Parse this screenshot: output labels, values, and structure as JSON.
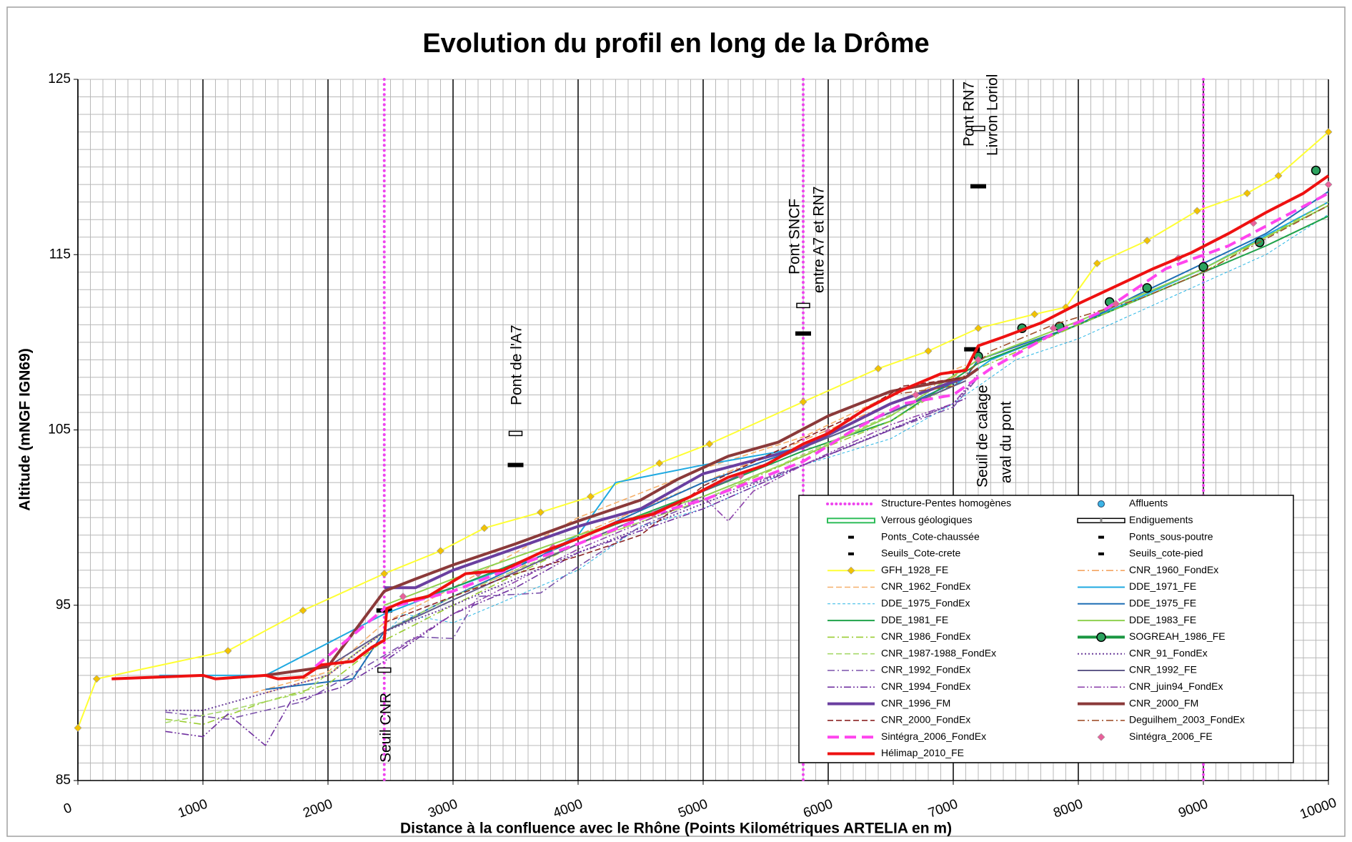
{
  "chart_data": {
    "type": "line",
    "title": "Evolution du profil en long de la Drôme",
    "x_label": "Distance à la confluence avec le Rhône (Points Kilométriques ARTELIA en m)",
    "y_label": "Altitude (mNGF IGN69)",
    "xlim": [
      0,
      10000
    ],
    "xticks": [
      0,
      1000,
      2000,
      3000,
      4000,
      5000,
      6000,
      7000,
      8000,
      9000,
      10000
    ],
    "ylim": [
      85,
      125
    ],
    "yticks": [
      85,
      95,
      105,
      115,
      125
    ],
    "grid": true,
    "annotations": [
      [
        "Seuil CNR"
      ],
      [
        "Pont de l'A7"
      ],
      [
        "Pont SNCF",
        "entre A7 et RN7"
      ],
      [
        "Pont RN7",
        "Livron Loriol"
      ],
      [
        "Seuil de calage",
        "aval du pont"
      ]
    ],
    "series": [
      {
        "name": "Structure-Pentes homogènes",
        "color": "#ee44ee",
        "style": "vline",
        "x": [
          2450,
          5800,
          9000
        ]
      },
      {
        "name": "Affluents",
        "color": "#3cb4e6",
        "style": "none",
        "marker": "circle"
      },
      {
        "name": "Verrous géologiques",
        "color": "#2ebd59",
        "style": "outlined"
      },
      {
        "name": "Endiguements",
        "color": "#000000",
        "style": "double"
      },
      {
        "name": "Ponts_Cote-chaussée",
        "color": "#000000",
        "style": "none",
        "marker": "hollow-bar",
        "x": [
          2450,
          3500,
          5800,
          7200
        ],
        "values": [
          91.3,
          104.8,
          112.1,
          122.2
        ]
      },
      {
        "name": "Ponts_sous-poutre",
        "color": "#000000",
        "style": "none",
        "marker": "bar",
        "x": [
          3500,
          5800,
          7200
        ],
        "values": [
          103,
          110.5,
          118.9
        ]
      },
      {
        "name": "Seuils_Cote-crete",
        "color": "#000000",
        "style": "none",
        "marker": "bar",
        "x": [
          2450,
          7150
        ],
        "values": [
          94.7,
          109.6
        ]
      },
      {
        "name": "Seuils_cote-pied",
        "color": "#000000",
        "style": "none",
        "marker": "bar"
      },
      {
        "name": "GFH_1928_FE",
        "color": "#ffff33",
        "style": "solid",
        "marker": "diamond",
        "marker_color": "#f2c200",
        "x": [
          0,
          150,
          1200,
          1800,
          2450,
          2900,
          3250,
          3700,
          4100,
          4650,
          5050,
          5800,
          6400,
          6800,
          7200,
          7650,
          7900,
          8150,
          8550,
          8950,
          9350,
          9600,
          10000
        ],
        "values": [
          88,
          90.8,
          92.4,
          94.7,
          96.8,
          98.1,
          99.4,
          100.3,
          101.2,
          103.1,
          104.2,
          106.6,
          108.5,
          109.5,
          110.8,
          111.6,
          112,
          114.5,
          115.8,
          117.5,
          118.5,
          119.5,
          122
        ]
      },
      {
        "name": "CNR_1960_FondEx",
        "color": "#f4a460",
        "style": "dashdot",
        "x": [
          1500,
          2000,
          2450,
          3000,
          3500,
          4000,
          5000,
          5800,
          6500,
          7000,
          7200
        ],
        "values": [
          90,
          91,
          93.5,
          95.5,
          97,
          99,
          102,
          104.4,
          106.5,
          108,
          109
        ]
      },
      {
        "name": "CNR_1962_FondEx",
        "color": "#f5b06a",
        "style": "dashed",
        "x": [
          1400,
          2000,
          2450,
          3000,
          4000,
          5000,
          5800,
          6500,
          7100
        ],
        "values": [
          90,
          91.2,
          94,
          96,
          100,
          102.8,
          104.6,
          107,
          108.7
        ]
      },
      {
        "name": "DDE_1971_FE",
        "color": "#1fa9e1",
        "style": "solid",
        "x": [
          650,
          1500,
          2450,
          3000,
          3700,
          4000,
          4300,
          5000,
          5800,
          6500,
          7000,
          7300,
          8000,
          9000,
          10000
        ],
        "values": [
          91,
          91,
          94.5,
          96,
          97.8,
          99,
          102,
          103,
          104,
          106,
          107.5,
          109,
          111,
          114.2,
          118
        ]
      },
      {
        "name": "DDE_1975_FondEx",
        "color": "#29b6e6",
        "style": "thin-dashed",
        "x": [
          2300,
          2600,
          3000,
          3500,
          4000,
          4500,
          5000,
          5800,
          6500,
          7000,
          7500,
          8000,
          8500,
          9000,
          9500,
          10000
        ],
        "values": [
          92,
          94.5,
          94,
          95.5,
          97,
          99.5,
          100.5,
          103,
          104.5,
          106.5,
          109,
          110.2,
          111.8,
          113.4,
          115,
          117.3
        ]
      },
      {
        "name": "DDE_1975_FE",
        "color": "#1f6fb5",
        "style": "solid",
        "x": [
          1500,
          2200,
          2450,
          3000,
          4000,
          5000,
          5800,
          6500,
          7100,
          7200,
          8000,
          8500,
          9000,
          9500,
          10000
        ],
        "values": [
          90.2,
          90.8,
          93.5,
          95.5,
          98.8,
          102,
          104,
          106,
          108,
          109,
          111,
          112.8,
          114.5,
          116.2,
          118.6
        ]
      },
      {
        "name": "DDE_1981_FE",
        "color": "#1fa24a",
        "style": "solid",
        "x": [
          2450,
          3000,
          4000,
          5000,
          5800,
          6500,
          7200,
          8000,
          9000,
          9500,
          10000
        ],
        "values": [
          94.8,
          96,
          98.8,
          101.5,
          103.8,
          105.5,
          108.8,
          111,
          114,
          115.5,
          117.2
        ]
      },
      {
        "name": "DDE_1983_FE",
        "color": "#8fd14f",
        "style": "solid",
        "x": [
          2450,
          3000,
          4000,
          5000,
          5800,
          6500,
          7200,
          8000,
          9000,
          10000
        ],
        "values": [
          95,
          96.5,
          99,
          101.2,
          103.5,
          105.8,
          109,
          111.2,
          114.2,
          117.8
        ]
      },
      {
        "name": "CNR_1986_FondEx",
        "color": "#9acd32",
        "style": "dashdot",
        "x": [
          700,
          1000,
          1500,
          2000,
          2450,
          3000,
          4000,
          5000,
          5800,
          6500,
          7200,
          8000,
          9000,
          10000
        ],
        "values": [
          88.5,
          88.2,
          89.5,
          90.5,
          93,
          95,
          98.5,
          101,
          103.5,
          105.5,
          108.5,
          111,
          114,
          118
        ]
      },
      {
        "name": "SOGREAH_1986_FE",
        "color": "#1a9641",
        "style": "none",
        "marker": "ring",
        "marker_color": "#2ca25f",
        "x": [
          7200,
          7550,
          7850,
          8250,
          8550,
          9000,
          9450,
          9900
        ],
        "values": [
          109.2,
          110.8,
          110.9,
          112.3,
          113.1,
          114.3,
          115.7,
          119.8
        ]
      },
      {
        "name": "CNR_1987-1988_FondEx",
        "color": "#a6d96a",
        "style": "dashed",
        "x": [
          700,
          1200,
          1800,
          2450,
          3000,
          4000,
          5000,
          5800,
          7000
        ],
        "values": [
          88.3,
          89,
          90,
          93.5,
          95.5,
          98.5,
          101,
          103.6,
          107.5
        ]
      },
      {
        "name": "CNR_91_FondEx",
        "color": "#6a3d9a",
        "style": "dotted",
        "x": [
          700,
          1000,
          1500,
          2000,
          2450,
          3000,
          4000,
          5000,
          5800,
          7000,
          7200
        ],
        "values": [
          89,
          89,
          90,
          91,
          93.5,
          95,
          98,
          100.8,
          103,
          106.5,
          108
        ]
      },
      {
        "name": "CNR_1992_FondEx",
        "color": "#7b52ab",
        "style": "dashdot",
        "x": [
          700,
          1200,
          1800,
          2300,
          2700,
          3000,
          3200,
          3700,
          4000,
          4500,
          5000,
          5800,
          6500,
          7000,
          7200
        ],
        "values": [
          88.9,
          88.5,
          89.5,
          91.5,
          93.2,
          93.1,
          95.5,
          95.7,
          97.2,
          99.5,
          101,
          103,
          105,
          106.3,
          108
        ]
      },
      {
        "name": "CNR_1992_FE",
        "color": "#615b8a",
        "style": "solid",
        "x": [
          1500,
          2000,
          2450,
          3000,
          4000,
          5000,
          5800,
          6500,
          7100
        ],
        "values": [
          91,
          91.5,
          93.5,
          95.3,
          98.5,
          101.5,
          104,
          106,
          107.8
        ]
      },
      {
        "name": "CNR_1994_FondEx",
        "color": "#7030a0",
        "style": "dashdotdot",
        "x": [
          700,
          1000,
          1200,
          1500,
          1700,
          2100,
          2450,
          3000,
          3500,
          4000,
          5000,
          5800,
          6500,
          7100
        ],
        "values": [
          87.8,
          87.5,
          88.8,
          87,
          89.5,
          90.3,
          91.8,
          94.5,
          96,
          98,
          100.5,
          103,
          105,
          106.8
        ]
      },
      {
        "name": "CNR_juin94_FondEx",
        "color": "#8e44ad",
        "style": "dashdotdot",
        "x": [
          2450,
          3000,
          4000,
          5000,
          5200,
          5400,
          5800,
          6500,
          7000,
          7200
        ],
        "values": [
          92,
          94.5,
          98.2,
          101.2,
          99.8,
          101.5,
          103,
          105.3,
          106.5,
          108.2
        ]
      },
      {
        "name": "CNR_1996_FM",
        "color": "#6a3fa0",
        "style": "thick",
        "x": [
          2450,
          2700,
          3000,
          4000,
          4500,
          5000,
          5800,
          6500,
          7100
        ],
        "values": [
          96,
          96,
          97,
          99.5,
          100.5,
          102.5,
          104,
          106.5,
          108
        ]
      },
      {
        "name": "CNR_2000_FM",
        "color": "#8b3a3a",
        "style": "thick",
        "x": [
          1500,
          2000,
          2450,
          2700,
          3000,
          3500,
          4000,
          4500,
          4800,
          5200,
          5600,
          6000,
          6500,
          7100,
          7200
        ],
        "values": [
          91,
          91.5,
          95.8,
          96.5,
          97.3,
          98.5,
          99.8,
          101,
          102.2,
          103.5,
          104.3,
          105.8,
          107.2,
          108,
          108.5
        ]
      },
      {
        "name": "CNR_2000_FondEx",
        "color": "#8b2323",
        "style": "dashed",
        "x": [
          2450,
          3000,
          3500,
          4000,
          4500,
          5000,
          5500,
          5800,
          6200,
          6600,
          7100
        ],
        "values": [
          94,
          95.5,
          96.8,
          97.8,
          99,
          101.8,
          103.5,
          104.5,
          105.8,
          107.5,
          108
        ]
      },
      {
        "name": "Deguilhem_2003_FondEx",
        "color": "#a0522d",
        "style": "dashdot",
        "x": [
          6500,
          7000,
          7300,
          7800,
          8500,
          9000,
          10000
        ],
        "values": [
          107,
          107.5,
          109.5,
          111,
          112.5,
          114,
          117.8
        ]
      },
      {
        "name": "Sintégra_2006_FondEx",
        "color": "#ff44ee",
        "style": "thick-dashed",
        "x": [
          1900,
          2450,
          3000,
          3600,
          4000,
          4600,
          5000,
          5800,
          6200,
          6600,
          7000,
          7300,
          7800,
          8200,
          8700,
          9200,
          9600,
          10000
        ],
        "values": [
          91.5,
          94.8,
          95.8,
          97.5,
          98.5,
          100.2,
          101,
          103.2,
          105,
          106.5,
          107,
          108.5,
          110.5,
          111.8,
          114.2,
          115.5,
          117,
          118.5
        ]
      },
      {
        "name": "Sintégra_2006_FE",
        "color": "#e8609a",
        "style": "none",
        "marker": "diamond",
        "marker_color": "#e8609a",
        "x": [
          2600,
          3200,
          3800,
          4600,
          5300,
          6000,
          6700,
          7200,
          7800,
          8300,
          8800,
          9400,
          10000
        ],
        "values": [
          95.5,
          96.8,
          98.3,
          100.2,
          102.4,
          104.9,
          107,
          109,
          110.8,
          112.2,
          114.8,
          116.8,
          119
        ]
      },
      {
        "name": "Hélimap_2010_FE",
        "color": "#ee1111",
        "style": "thick",
        "x": [
          270,
          1000,
          1100,
          1500,
          1600,
          1800,
          1950,
          2200,
          2350,
          2450,
          2470,
          2600,
          2800,
          3100,
          3400,
          3700,
          4000,
          4300,
          4600,
          4900,
          5200,
          5500,
          5800,
          6000,
          6300,
          6600,
          6900,
          7100,
          7200,
          7400,
          7700,
          8000,
          8300,
          8600,
          8900,
          9200,
          9500,
          9800,
          10000
        ],
        "values": [
          90.8,
          91,
          90.8,
          91,
          90.8,
          90.9,
          91.6,
          91.8,
          92.6,
          93,
          94.8,
          95.2,
          95.5,
          96.8,
          97,
          98,
          98.8,
          99.7,
          100.2,
          101.2,
          102.3,
          103,
          104.2,
          104.8,
          106.2,
          107.3,
          108.2,
          108.4,
          109.8,
          110.3,
          111.1,
          112.2,
          113.2,
          114.2,
          115.1,
          116.2,
          117.4,
          118.5,
          119.5
        ]
      }
    ]
  }
}
